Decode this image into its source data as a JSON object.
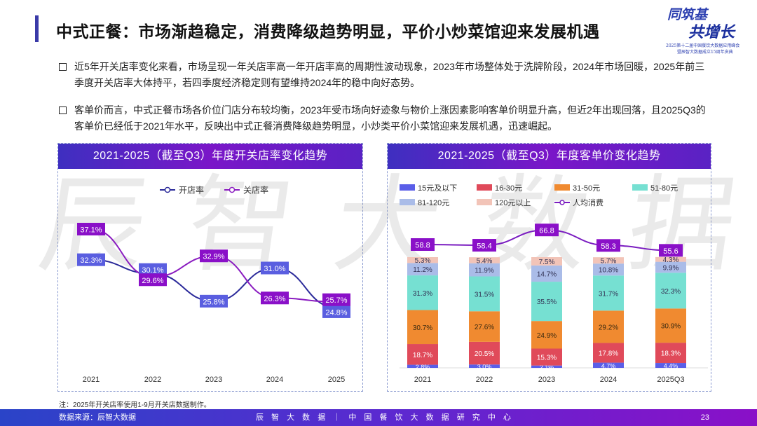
{
  "header": {
    "title": "中式正餐：市场渐趋稳定，消费降级趋势明显，平价小炒菜馆迎来发展机遇"
  },
  "logo": {
    "line1": "同筑基",
    "line2": "共增长",
    "sub1": "2025第十二届中国餐饮大数据应用峰会",
    "sub2": "暨辰智大数据成立15周年庆典"
  },
  "bullets": [
    "近5年开关店率变化来看，市场呈现一年关店率高一年开店率高的周期性波动现象，2023年市场整体处于洗牌阶段，2024年市场回暖，2025年前三季度开关店率大体持平，若四季度经济稳定则有望维持2024年的稳中向好态势。",
    "客单价而言，中式正餐市场各价位门店分布较均衡，2023年受市场向好迹象与物价上涨因素影响客单价明显升高，但近2年出现回落，且2025Q3的客单价已经低于2021年水平，反映出中式正餐消费降级趋势明显，小炒类平价小菜馆迎来发展机遇，迅速崛起。"
  ],
  "watermark": "辰智大数据",
  "chart_data": [
    {
      "type": "line",
      "title": "2021-2025（截至Q3）年度开关店率变化趋势",
      "categories": [
        "2021",
        "2022",
        "2023",
        "2024",
        "2025"
      ],
      "series": [
        {
          "name": "开店率",
          "values": [
            32.3,
            30.1,
            25.8,
            31.0,
            24.8
          ],
          "labels": [
            "32.3%",
            "30.1%",
            "25.8%",
            "31.0%",
            "24.8%"
          ],
          "color": "#2b2a9a",
          "label_bg": "#5a5ee0"
        },
        {
          "name": "关店率",
          "values": [
            37.1,
            29.6,
            32.9,
            26.3,
            25.7
          ],
          "labels": [
            "37.1%",
            "29.6%",
            "32.9%",
            "26.3%",
            "25.7%"
          ],
          "color": "#8a1cc0",
          "label_bg": "#8a10c8"
        }
      ],
      "legend": "top",
      "grid": false
    },
    {
      "type": "bar",
      "stacked": true,
      "title": "2021-2025（截至Q3）年度客单价变化趋势",
      "categories": [
        "2021",
        "2022",
        "2023",
        "2024",
        "2025Q3"
      ],
      "series": [
        {
          "name": "15元及以下",
          "values": [
            2.8,
            3.0,
            2.1,
            4.7,
            4.4
          ],
          "labels": [
            "2.8%",
            "3.0%",
            "2.1%",
            "4.7%",
            "4.4%"
          ],
          "color": "#5a5ee8"
        },
        {
          "name": "16-30元",
          "values": [
            18.7,
            20.5,
            15.3,
            17.8,
            18.3
          ],
          "labels": [
            "18.7%",
            "20.5%",
            "15.3%",
            "17.8%",
            "18.3%"
          ],
          "color": "#e04a5a"
        },
        {
          "name": "31-50元",
          "values": [
            30.7,
            27.6,
            24.9,
            29.2,
            30.9
          ],
          "labels": [
            "30.7%",
            "27.6%",
            "24.9%",
            "29.2%",
            "30.9%"
          ],
          "color": "#f08a30"
        },
        {
          "name": "51-80元",
          "values": [
            31.3,
            31.5,
            35.5,
            31.7,
            32.3
          ],
          "labels": [
            "31.3%",
            "31.5%",
            "35.5%",
            "31.7%",
            "32.3%"
          ],
          "color": "#76e0d2"
        },
        {
          "name": "81-120元",
          "values": [
            11.2,
            11.9,
            14.7,
            10.8,
            9.9
          ],
          "labels": [
            "11.2%",
            "11.9%",
            "14.7%",
            "10.8%",
            "9.9%"
          ],
          "color": "#aabce8"
        },
        {
          "name": "120元以上",
          "values": [
            5.3,
            5.4,
            7.5,
            5.7,
            4.3
          ],
          "labels": [
            "5.3%",
            "5.4%",
            "7.5%",
            "5.7%",
            "4.3%"
          ],
          "color": "#f2c4b8"
        }
      ],
      "line": {
        "name": "人均消费",
        "values": [
          58.8,
          58.4,
          66.8,
          58.3,
          55.6
        ],
        "labels": [
          "58.8",
          "58.4",
          "66.8",
          "58.3",
          "55.6"
        ],
        "color": "#7a1cc0"
      },
      "ylim": [
        0,
        100
      ],
      "legend": "top",
      "grid": false
    }
  ],
  "note": "注：2025年开关店率使用1-9月开关店数据制作。",
  "footer": {
    "source": "数据来源：辰智大数据",
    "center": "辰 智 大 数 据 ｜ 中 国 餐 饮 大 数 据 研 究 中 心",
    "page": "23"
  }
}
